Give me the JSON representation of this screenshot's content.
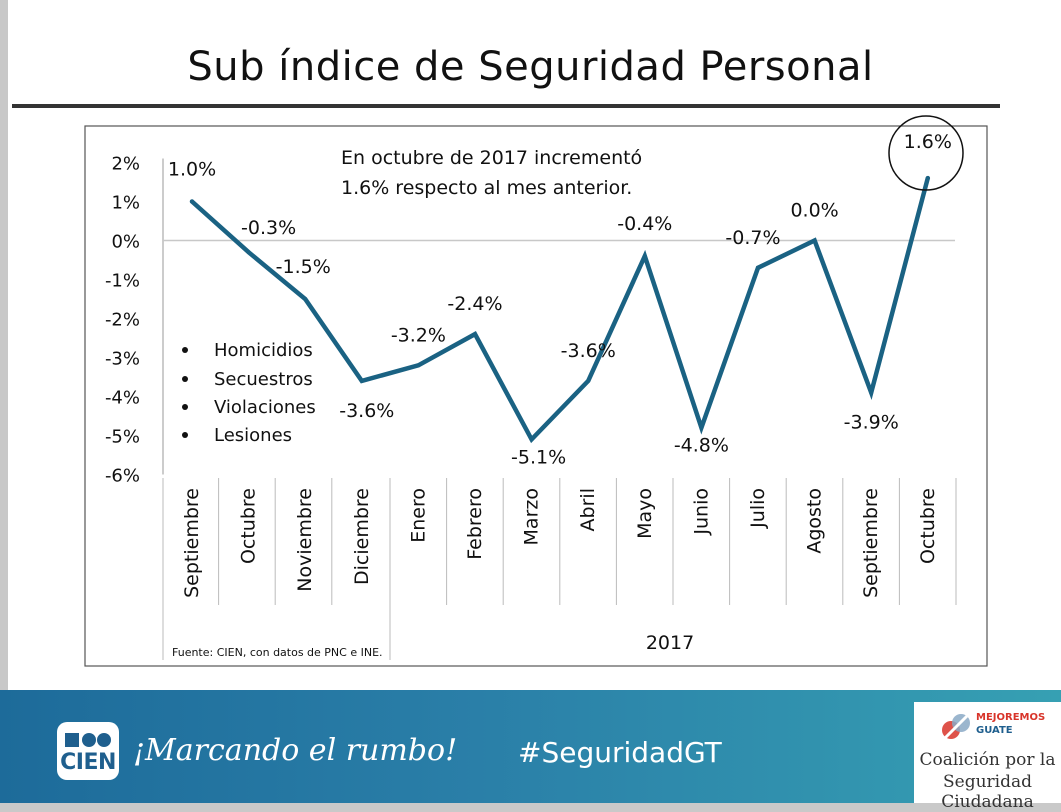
{
  "slide": {
    "title": "Sub índice de Seguridad Personal",
    "slogan": "¡Marcando el rumbo!",
    "hashtag": "#SeguridadGT",
    "cien_logo_text": "CIEN",
    "coalition_brand_line1": "MEJOREMOS",
    "coalition_brand_line2": "GUATE",
    "coalition_line1": "Coalición por la",
    "coalition_line2": "Seguridad Ciudadana"
  },
  "colors": {
    "line": "#1a6283",
    "footer_start": "#1d6b9a",
    "footer_end": "#36a0b3"
  },
  "chart_data": {
    "type": "line",
    "title": "Sub índice de Seguridad Personal",
    "categories": [
      "Septiembre",
      "Octubre",
      "Noviembre",
      "Diciembre",
      "Enero",
      "Febrero",
      "Marzo",
      "Abril",
      "Mayo",
      "Junio",
      "Julio",
      "Agosto",
      "Septiembre",
      "Octubre"
    ],
    "values": [
      1.0,
      -0.3,
      -1.5,
      -3.6,
      -3.2,
      -2.4,
      -5.1,
      -3.6,
      -0.4,
      -4.8,
      -0.7,
      0.0,
      -3.9,
      1.6
    ],
    "data_labels": [
      "1.0%",
      "-0.3%",
      "-1.5%",
      "-3.6%",
      "-3.2%",
      "-2.4%",
      "-5.1%",
      "-3.6%",
      "-0.4%",
      "-4.8%",
      "-0.7%",
      "0.0%",
      "-3.9%",
      "1.6%"
    ],
    "ylim": [
      -6,
      2
    ],
    "yticks": [
      2,
      1,
      0,
      -1,
      -2,
      -3,
      -4,
      -5,
      -6
    ],
    "ytick_labels": [
      "2%",
      "1%",
      "0%",
      "-1%",
      "-2%",
      "-3%",
      "-4%",
      "-5%",
      "-6%"
    ],
    "group_label": "2017",
    "annotation_line1": "En octubre de 2017 incrementó",
    "annotation_line2": "1.6% respecto al mes anterior.",
    "legend_items": [
      "Homicidios",
      "Secuestros",
      "Violaciones",
      "Lesiones"
    ],
    "source": "Fuente: CIEN, con datos de PNC e INE.",
    "highlighted_point": "1.6%"
  }
}
